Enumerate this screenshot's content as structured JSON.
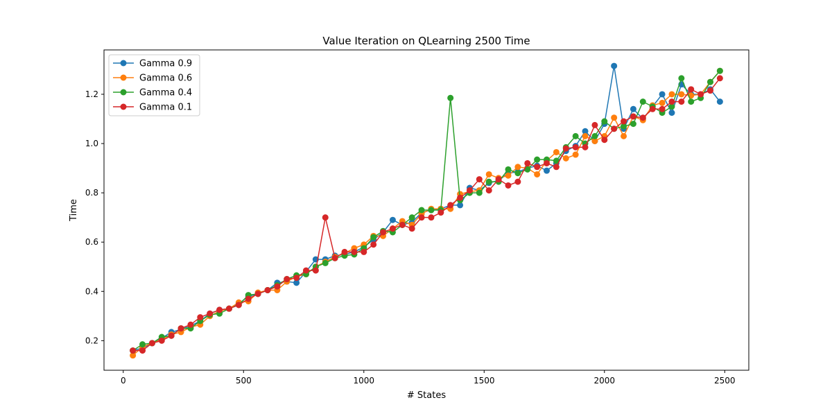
{
  "chart_data": {
    "type": "line",
    "title": "Value Iteration on QLearning 2500  Time",
    "xlabel": "# States",
    "ylabel": "Time",
    "xlim": [
      -80,
      2600
    ],
    "ylim": [
      0.08,
      1.38
    ],
    "xticks": [
      0,
      500,
      1000,
      1500,
      2000,
      2500
    ],
    "yticks": [
      0.2,
      0.4,
      0.6,
      0.8,
      1.0,
      1.2
    ],
    "ytick_labels": [
      "0.2",
      "0.4",
      "0.6",
      "0.8",
      "1.0",
      "1.2"
    ],
    "grid": false,
    "legend_position": "top-left",
    "x": [
      40,
      80,
      120,
      160,
      200,
      240,
      280,
      320,
      360,
      400,
      440,
      480,
      520,
      560,
      600,
      640,
      680,
      720,
      760,
      800,
      840,
      880,
      920,
      960,
      1000,
      1040,
      1080,
      1120,
      1160,
      1200,
      1240,
      1280,
      1320,
      1360,
      1400,
      1440,
      1480,
      1520,
      1560,
      1600,
      1640,
      1680,
      1720,
      1760,
      1800,
      1840,
      1880,
      1920,
      1960,
      2000,
      2040,
      2080,
      2120,
      2160,
      2200,
      2240,
      2280,
      2320,
      2360,
      2400,
      2440,
      2480
    ],
    "series": [
      {
        "name": "Gamma 0.9",
        "color": "#1f77b4",
        "values": [
          0.16,
          0.17,
          0.19,
          0.21,
          0.235,
          0.245,
          0.26,
          0.28,
          0.31,
          0.325,
          0.33,
          0.35,
          0.38,
          0.39,
          0.405,
          0.435,
          0.44,
          0.435,
          0.48,
          0.53,
          0.53,
          0.545,
          0.55,
          0.56,
          0.58,
          0.61,
          0.64,
          0.69,
          0.67,
          0.68,
          0.72,
          0.73,
          0.735,
          0.75,
          0.75,
          0.82,
          0.81,
          0.84,
          0.85,
          0.88,
          0.885,
          0.9,
          0.91,
          0.89,
          0.92,
          0.97,
          0.99,
          1.05,
          1.01,
          1.08,
          1.315,
          1.06,
          1.14,
          1.1,
          1.15,
          1.2,
          1.125,
          1.24,
          1.2,
          1.2,
          1.22,
          1.17
        ]
      },
      {
        "name": "Gamma 0.6",
        "color": "#ff7f0e",
        "values": [
          0.14,
          0.175,
          0.19,
          0.205,
          0.225,
          0.235,
          0.255,
          0.265,
          0.3,
          0.32,
          0.33,
          0.355,
          0.36,
          0.395,
          0.405,
          0.405,
          0.44,
          0.46,
          0.47,
          0.5,
          0.52,
          0.54,
          0.555,
          0.575,
          0.59,
          0.625,
          0.625,
          0.655,
          0.685,
          0.67,
          0.715,
          0.735,
          0.735,
          0.735,
          0.795,
          0.805,
          0.81,
          0.875,
          0.86,
          0.87,
          0.905,
          0.9,
          0.875,
          0.93,
          0.965,
          0.94,
          0.955,
          1.03,
          1.01,
          1.03,
          1.105,
          1.03,
          1.11,
          1.095,
          1.155,
          1.165,
          1.2,
          1.2,
          1.195,
          1.2,
          1.25,
          1.295
        ]
      },
      {
        "name": "Gamma 0.4",
        "color": "#2ca02c",
        "values": [
          0.16,
          0.185,
          0.19,
          0.215,
          0.22,
          0.25,
          0.25,
          0.28,
          0.305,
          0.31,
          0.33,
          0.345,
          0.385,
          0.39,
          0.405,
          0.425,
          0.45,
          0.465,
          0.47,
          0.5,
          0.515,
          0.535,
          0.545,
          0.55,
          0.575,
          0.62,
          0.645,
          0.64,
          0.67,
          0.7,
          0.73,
          0.73,
          0.73,
          1.185,
          0.77,
          0.8,
          0.8,
          0.845,
          0.845,
          0.895,
          0.88,
          0.895,
          0.935,
          0.935,
          0.93,
          0.985,
          1.03,
          1.0,
          1.03,
          1.09,
          1.06,
          1.07,
          1.08,
          1.17,
          1.15,
          1.125,
          1.15,
          1.265,
          1.17,
          1.185,
          1.25,
          1.295
        ]
      },
      {
        "name": "Gamma 0.1",
        "color": "#d62728",
        "values": [
          0.16,
          0.16,
          0.19,
          0.2,
          0.22,
          0.25,
          0.265,
          0.295,
          0.31,
          0.325,
          0.33,
          0.345,
          0.37,
          0.39,
          0.405,
          0.42,
          0.45,
          0.455,
          0.485,
          0.485,
          0.7,
          0.535,
          0.56,
          0.56,
          0.56,
          0.59,
          0.64,
          0.655,
          0.67,
          0.655,
          0.7,
          0.7,
          0.72,
          0.75,
          0.78,
          0.81,
          0.855,
          0.81,
          0.855,
          0.83,
          0.845,
          0.92,
          0.905,
          0.92,
          0.905,
          0.98,
          0.985,
          0.985,
          1.075,
          1.015,
          1.06,
          1.09,
          1.11,
          1.105,
          1.14,
          1.14,
          1.17,
          1.17,
          1.22,
          1.2,
          1.215,
          1.265
        ]
      }
    ]
  }
}
